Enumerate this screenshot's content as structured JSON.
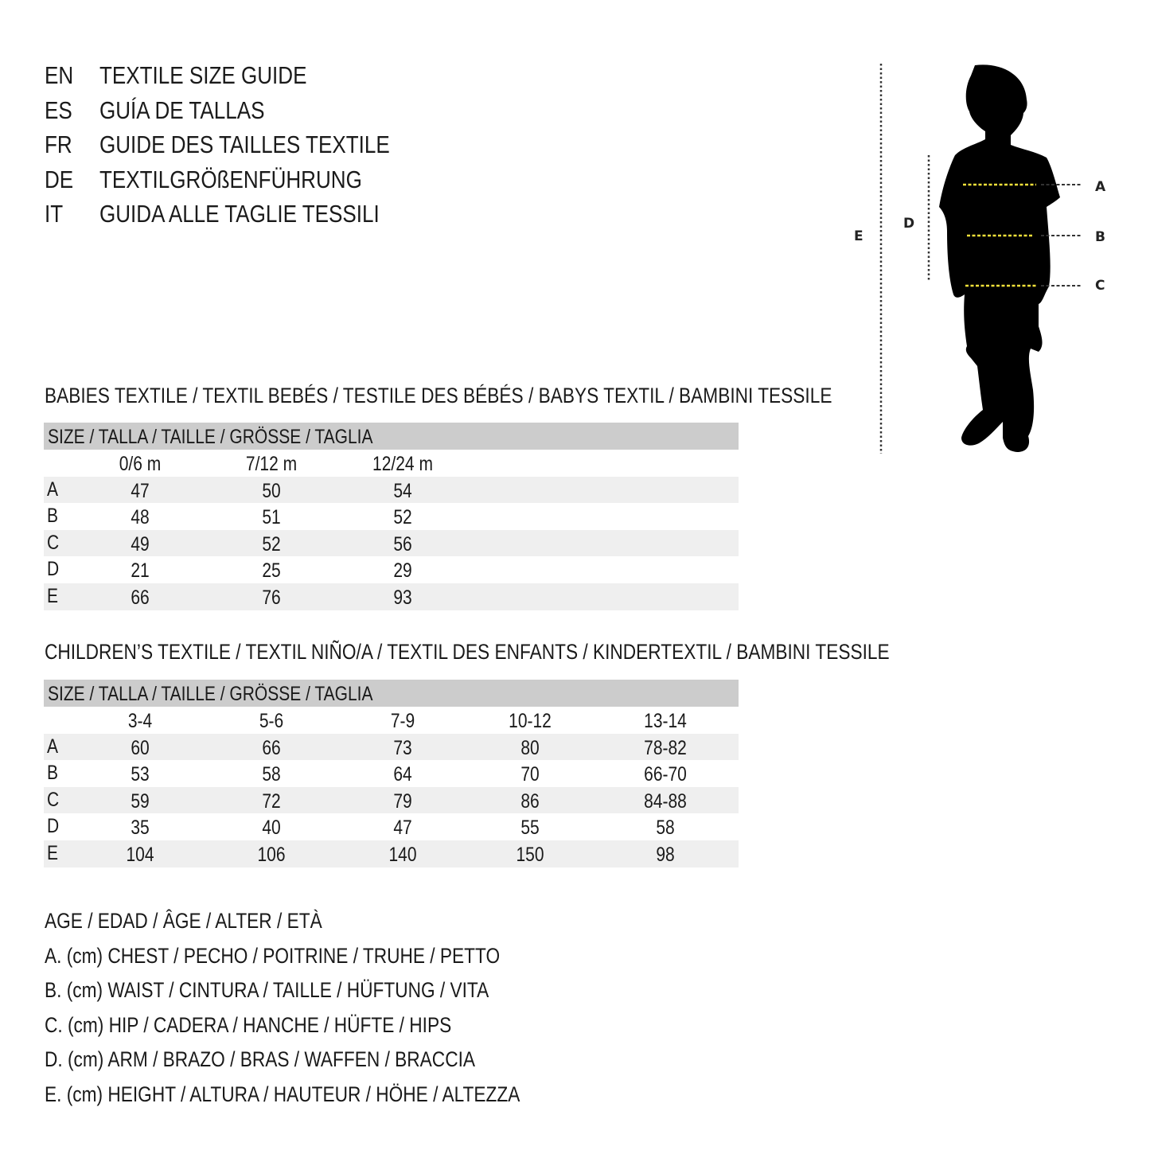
{
  "titles": [
    {
      "code": "EN",
      "text": "TEXTILE SIZE GUIDE"
    },
    {
      "code": "ES",
      "text": "GUÍA DE TALLAS"
    },
    {
      "code": "FR",
      "text": "GUIDE DES TAILLES TEXTILE"
    },
    {
      "code": "DE",
      "text": "TEXTILGRÖßENFÜHRUNG"
    },
    {
      "code": "IT",
      "text": "GUIDA ALLE TAGLIE TESSILI"
    }
  ],
  "figure": {
    "labels": {
      "a": "A",
      "b": "B",
      "c": "C",
      "d": "D",
      "e": "E"
    },
    "colors": {
      "measure_line": "#f2e03a",
      "silhouette": "#000000"
    }
  },
  "babies": {
    "heading": "BABIES TEXTILE / TEXTIL BEBÉS / TESTILE DES BÉBÉS / BABYS TEXTIL / BAMBINI TESSILE",
    "size_header": "SIZE / TALLA / TAILLE / GRÖSSE / TAGLIA",
    "columns": [
      "0/6 m",
      "7/12 m",
      "12/24 m"
    ],
    "rows": [
      {
        "label": "A",
        "values": [
          "47",
          "50",
          "54"
        ]
      },
      {
        "label": "B",
        "values": [
          "48",
          "51",
          "52"
        ]
      },
      {
        "label": "C",
        "values": [
          "49",
          "52",
          "56"
        ]
      },
      {
        "label": "D",
        "values": [
          "21",
          "25",
          "29"
        ]
      },
      {
        "label": "E",
        "values": [
          "66",
          "76",
          "93"
        ]
      }
    ]
  },
  "children": {
    "heading": "CHILDREN’S TEXTILE / TEXTIL NIÑO/A / TEXTIL DES ENFANTS / KINDERTEXTIL / BAMBINI TESSILE",
    "size_header": "SIZE / TALLA / TAILLE / GRÖSSE / TAGLIA",
    "columns": [
      "3-4",
      "5-6",
      "7-9",
      "10-12",
      "13-14"
    ],
    "rows": [
      {
        "label": "A",
        "values": [
          "60",
          "66",
          "73",
          "80",
          "78-82"
        ]
      },
      {
        "label": "B",
        "values": [
          "53",
          "58",
          "64",
          "70",
          "66-70"
        ]
      },
      {
        "label": "C",
        "values": [
          "59",
          "72",
          "79",
          "86",
          "84-88"
        ]
      },
      {
        "label": "D",
        "values": [
          "35",
          "40",
          "47",
          "55",
          "58"
        ]
      },
      {
        "label": "E",
        "values": [
          "104",
          "106",
          "140",
          "150",
          "98"
        ]
      }
    ]
  },
  "legend": [
    "AGE / EDAD / ÂGE / ALTER / ETÀ",
    "A. (cm) CHEST / PECHO / POITRINE / TRUHE / PETTO",
    "B. (cm) WAIST / CINTURA / TAILLE / HÜFTUNG / VITA",
    "C. (cm) HIP / CADERA / HANCHE / HÜFTE / HIPS",
    "D. (cm) ARM / BRAZO / BRAS / WAFFEN / BRACCIA",
    "E. (cm) HEIGHT / ALTURA / HAUTEUR / HÖHE / ALTEZZA"
  ]
}
